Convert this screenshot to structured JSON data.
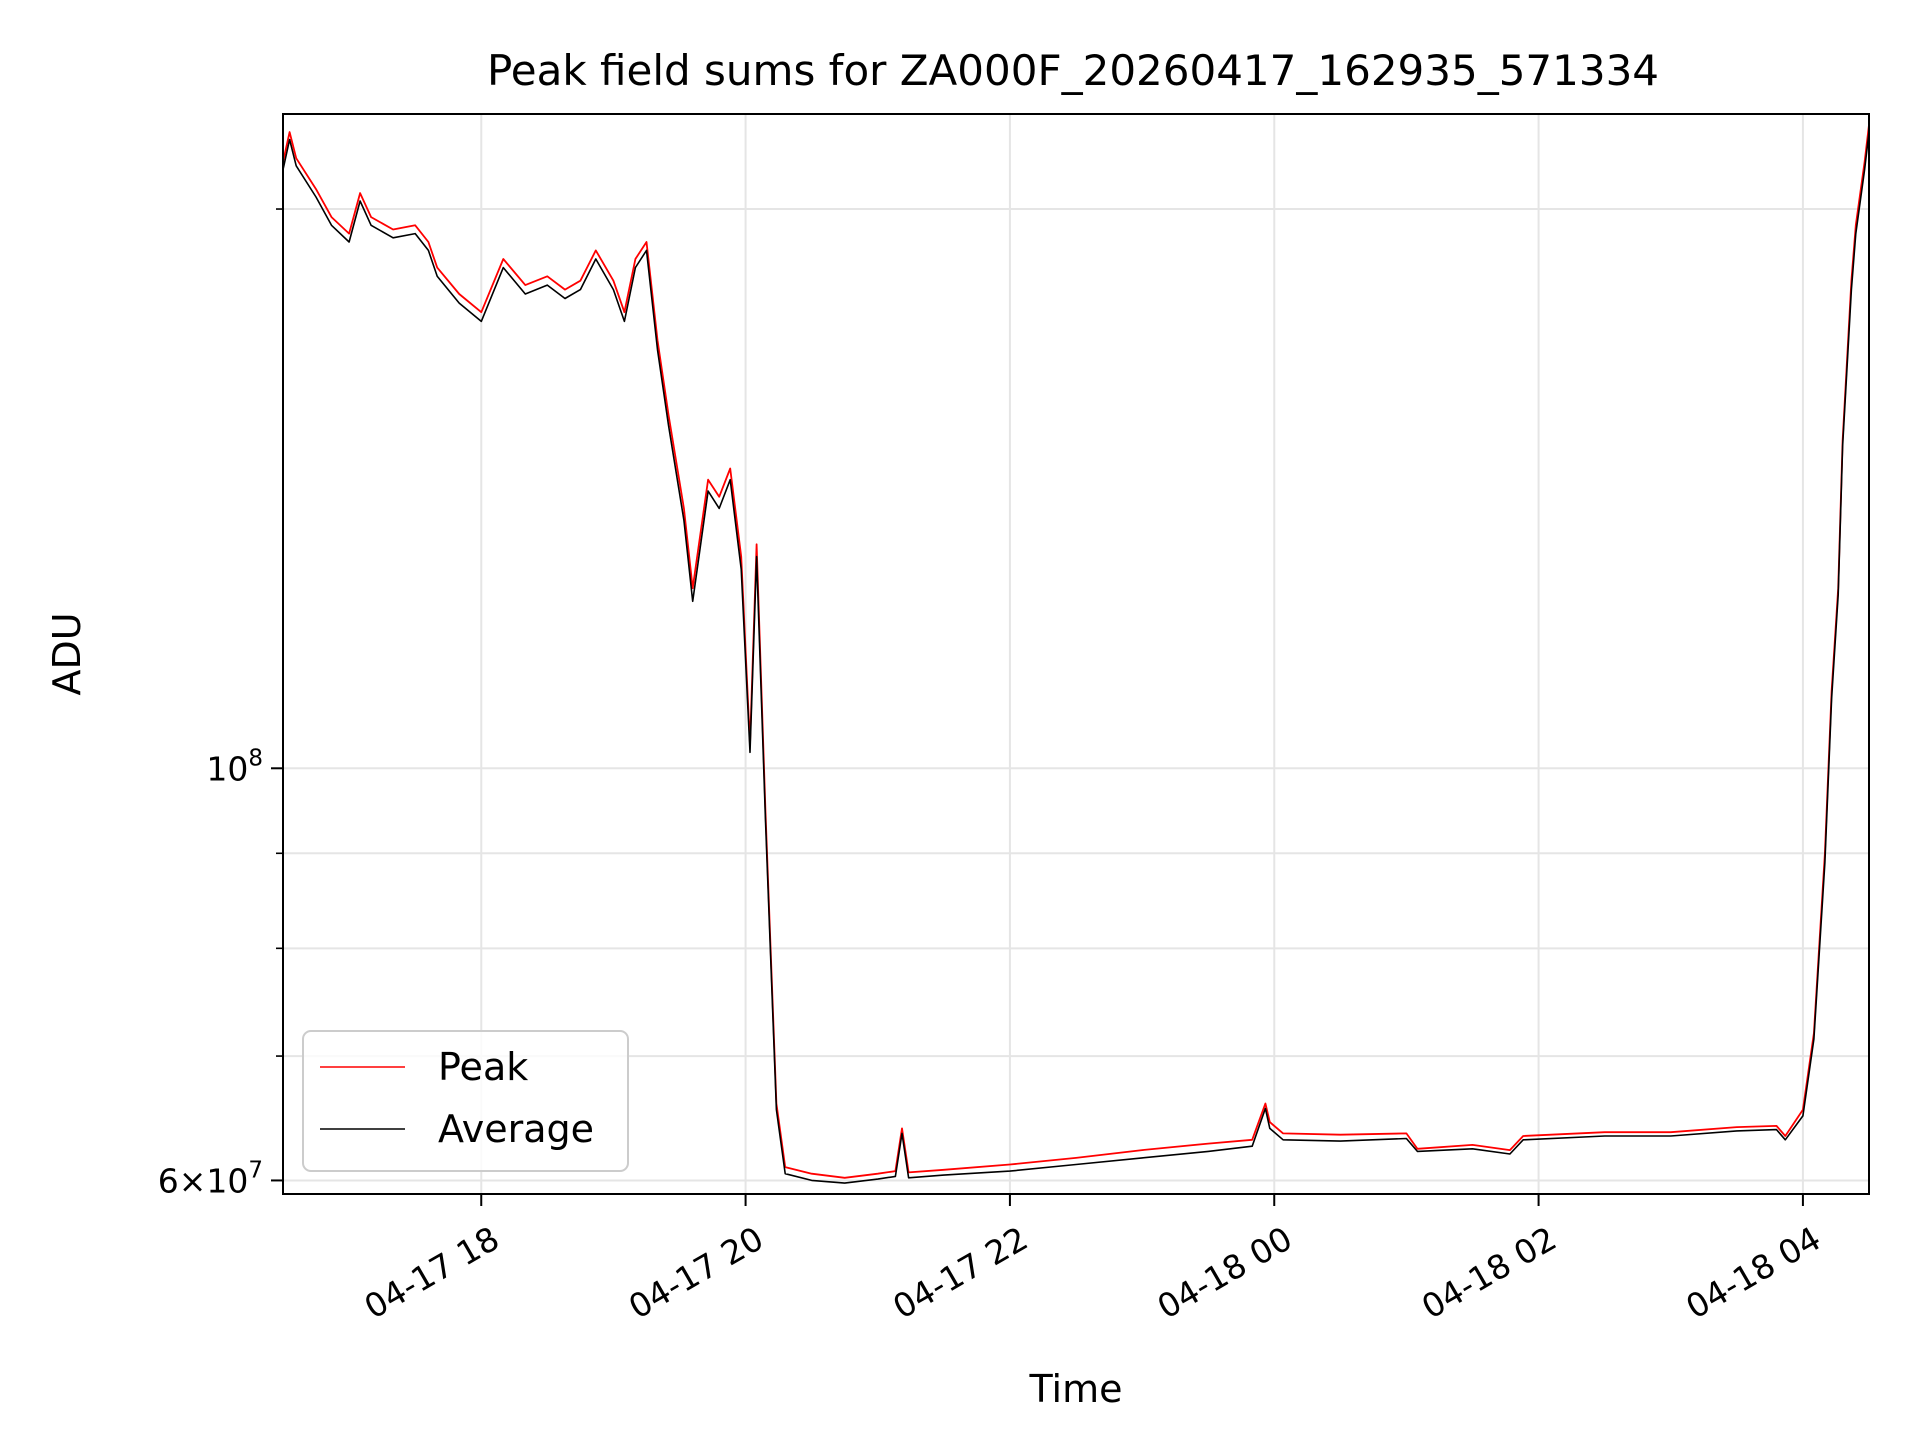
{
  "chart_data": {
    "type": "line",
    "title": "Peak field sums for ZA000F_20260417_162935_571334",
    "xlabel": "Time",
    "ylabel": "ADU",
    "y_scale": "log",
    "xlim": [
      "2026-04-17T16:30",
      "2026-04-18T04:30"
    ],
    "ylim": [
      59000000,
      225000000
    ],
    "x_ticks": [
      {
        "value": "2026-04-17T18:00",
        "label": "04-17 18"
      },
      {
        "value": "2026-04-17T20:00",
        "label": "04-17 20"
      },
      {
        "value": "2026-04-17T22:00",
        "label": "04-17 22"
      },
      {
        "value": "2026-04-18T00:00",
        "label": "04-18 00"
      },
      {
        "value": "2026-04-18T02:00",
        "label": "04-18 02"
      },
      {
        "value": "2026-04-18T04:00",
        "label": "04-18 04"
      }
    ],
    "y_major_ticks": [
      {
        "value": 60000000,
        "base": "6",
        "exp": "7",
        "mantissa": true
      },
      {
        "value": 100000000,
        "base": "10",
        "exp": "8",
        "mantissa": false
      }
    ],
    "y_minor_ticks": [
      70000000,
      80000000,
      90000000,
      200000000
    ],
    "grid": true,
    "legend_position": "lower-left",
    "series": [
      {
        "name": "Peak",
        "color": "#ff0000",
        "points": [
          [
            "2026-04-17T16:30",
            212000000
          ],
          [
            "2026-04-17T16:33",
            220000000
          ],
          [
            "2026-04-17T16:36",
            213000000
          ],
          [
            "2026-04-17T16:45",
            205000000
          ],
          [
            "2026-04-17T16:52",
            198000000
          ],
          [
            "2026-04-17T17:00",
            194000000
          ],
          [
            "2026-04-17T17:05",
            204000000
          ],
          [
            "2026-04-17T17:10",
            198000000
          ],
          [
            "2026-04-17T17:20",
            195000000
          ],
          [
            "2026-04-17T17:30",
            196000000
          ],
          [
            "2026-04-17T17:36",
            192000000
          ],
          [
            "2026-04-17T17:40",
            186000000
          ],
          [
            "2026-04-17T17:50",
            180000000
          ],
          [
            "2026-04-17T18:00",
            176000000
          ],
          [
            "2026-04-17T18:10",
            188000000
          ],
          [
            "2026-04-17T18:20",
            182000000
          ],
          [
            "2026-04-17T18:30",
            184000000
          ],
          [
            "2026-04-17T18:38",
            181000000
          ],
          [
            "2026-04-17T18:45",
            183000000
          ],
          [
            "2026-04-17T18:52",
            190000000
          ],
          [
            "2026-04-17T19:00",
            183000000
          ],
          [
            "2026-04-17T19:05",
            176000000
          ],
          [
            "2026-04-17T19:10",
            188000000
          ],
          [
            "2026-04-17T19:15",
            192000000
          ],
          [
            "2026-04-17T19:20",
            170000000
          ],
          [
            "2026-04-17T19:25",
            155000000
          ],
          [
            "2026-04-17T19:32",
            138000000
          ],
          [
            "2026-04-17T19:36",
            125000000
          ],
          [
            "2026-04-17T19:43",
            143000000
          ],
          [
            "2026-04-17T19:48",
            140000000
          ],
          [
            "2026-04-17T19:53",
            145000000
          ],
          [
            "2026-04-17T19:58",
            130000000
          ],
          [
            "2026-04-17T20:02",
            103000000
          ],
          [
            "2026-04-17T20:05",
            132000000
          ],
          [
            "2026-04-17T20:09",
            95000000
          ],
          [
            "2026-04-17T20:14",
            66000000
          ],
          [
            "2026-04-17T20:18",
            61000000
          ],
          [
            "2026-04-17T20:30",
            60500000
          ],
          [
            "2026-04-17T20:45",
            60200000
          ],
          [
            "2026-04-17T21:00",
            60500000
          ],
          [
            "2026-04-17T21:08",
            60700000
          ],
          [
            "2026-04-17T21:11",
            64000000
          ],
          [
            "2026-04-17T21:14",
            60600000
          ],
          [
            "2026-04-17T21:30",
            60800000
          ],
          [
            "2026-04-17T22:00",
            61200000
          ],
          [
            "2026-04-17T22:30",
            61700000
          ],
          [
            "2026-04-17T23:00",
            62300000
          ],
          [
            "2026-04-17T23:30",
            62800000
          ],
          [
            "2026-04-17T23:50",
            63100000
          ],
          [
            "2026-04-17T23:56",
            66000000
          ],
          [
            "2026-04-17T23:58",
            64500000
          ],
          [
            "2026-04-18T00:04",
            63600000
          ],
          [
            "2026-04-18T00:30",
            63500000
          ],
          [
            "2026-04-18T01:00",
            63600000
          ],
          [
            "2026-04-18T01:05",
            62400000
          ],
          [
            "2026-04-18T01:30",
            62700000
          ],
          [
            "2026-04-18T01:47",
            62300000
          ],
          [
            "2026-04-18T01:53",
            63400000
          ],
          [
            "2026-04-18T02:30",
            63700000
          ],
          [
            "2026-04-18T03:00",
            63700000
          ],
          [
            "2026-04-18T03:30",
            64100000
          ],
          [
            "2026-04-18T03:48",
            64200000
          ],
          [
            "2026-04-18T03:52",
            63400000
          ],
          [
            "2026-04-18T04:00",
            65500000
          ],
          [
            "2026-04-18T04:05",
            72000000
          ],
          [
            "2026-04-18T04:10",
            90000000
          ],
          [
            "2026-04-18T04:13",
            110000000
          ],
          [
            "2026-04-18T04:16",
            125000000
          ],
          [
            "2026-04-18T04:18",
            150000000
          ],
          [
            "2026-04-18T04:22",
            183000000
          ],
          [
            "2026-04-18T04:24",
            196000000
          ],
          [
            "2026-04-18T04:28",
            212000000
          ],
          [
            "2026-04-18T04:30",
            222000000
          ]
        ]
      },
      {
        "name": "Average",
        "color": "#000000",
        "points": [
          [
            "2026-04-17T16:30",
            210000000
          ],
          [
            "2026-04-17T16:33",
            218000000
          ],
          [
            "2026-04-17T16:36",
            211000000
          ],
          [
            "2026-04-17T16:45",
            203000000
          ],
          [
            "2026-04-17T16:52",
            196000000
          ],
          [
            "2026-04-17T17:00",
            192000000
          ],
          [
            "2026-04-17T17:05",
            202000000
          ],
          [
            "2026-04-17T17:10",
            196000000
          ],
          [
            "2026-04-17T17:20",
            193000000
          ],
          [
            "2026-04-17T17:30",
            194000000
          ],
          [
            "2026-04-17T17:36",
            190000000
          ],
          [
            "2026-04-17T17:40",
            184000000
          ],
          [
            "2026-04-17T17:50",
            178000000
          ],
          [
            "2026-04-17T18:00",
            174000000
          ],
          [
            "2026-04-17T18:10",
            186000000
          ],
          [
            "2026-04-17T18:20",
            180000000
          ],
          [
            "2026-04-17T18:30",
            182000000
          ],
          [
            "2026-04-17T18:38",
            179000000
          ],
          [
            "2026-04-17T18:45",
            181000000
          ],
          [
            "2026-04-17T18:52",
            188000000
          ],
          [
            "2026-04-17T19:00",
            181000000
          ],
          [
            "2026-04-17T19:05",
            174000000
          ],
          [
            "2026-04-17T19:10",
            186000000
          ],
          [
            "2026-04-17T19:15",
            190000000
          ],
          [
            "2026-04-17T19:20",
            168000000
          ],
          [
            "2026-04-17T19:25",
            153000000
          ],
          [
            "2026-04-17T19:32",
            136000000
          ],
          [
            "2026-04-17T19:36",
            123000000
          ],
          [
            "2026-04-17T19:43",
            141000000
          ],
          [
            "2026-04-17T19:48",
            138000000
          ],
          [
            "2026-04-17T19:53",
            143000000
          ],
          [
            "2026-04-17T19:58",
            128000000
          ],
          [
            "2026-04-17T20:02",
            102000000
          ],
          [
            "2026-04-17T20:05",
            130000000
          ],
          [
            "2026-04-17T20:09",
            94000000
          ],
          [
            "2026-04-17T20:14",
            65500000
          ],
          [
            "2026-04-17T20:18",
            60500000
          ],
          [
            "2026-04-17T20:30",
            60000000
          ],
          [
            "2026-04-17T20:45",
            59800000
          ],
          [
            "2026-04-17T21:00",
            60100000
          ],
          [
            "2026-04-17T21:08",
            60300000
          ],
          [
            "2026-04-17T21:11",
            63600000
          ],
          [
            "2026-04-17T21:14",
            60200000
          ],
          [
            "2026-04-17T21:30",
            60400000
          ],
          [
            "2026-04-17T22:00",
            60700000
          ],
          [
            "2026-04-17T22:30",
            61200000
          ],
          [
            "2026-04-17T23:00",
            61700000
          ],
          [
            "2026-04-17T23:30",
            62200000
          ],
          [
            "2026-04-17T23:50",
            62600000
          ],
          [
            "2026-04-17T23:56",
            65600000
          ],
          [
            "2026-04-17T23:58",
            64000000
          ],
          [
            "2026-04-18T00:04",
            63100000
          ],
          [
            "2026-04-18T00:30",
            63000000
          ],
          [
            "2026-04-18T01:00",
            63200000
          ],
          [
            "2026-04-18T01:05",
            62200000
          ],
          [
            "2026-04-18T01:30",
            62400000
          ],
          [
            "2026-04-18T01:47",
            62000000
          ],
          [
            "2026-04-18T01:53",
            63100000
          ],
          [
            "2026-04-18T02:30",
            63400000
          ],
          [
            "2026-04-18T03:00",
            63400000
          ],
          [
            "2026-04-18T03:30",
            63800000
          ],
          [
            "2026-04-18T03:48",
            63900000
          ],
          [
            "2026-04-18T03:52",
            63100000
          ],
          [
            "2026-04-18T04:00",
            65000000
          ],
          [
            "2026-04-18T04:05",
            71500000
          ],
          [
            "2026-04-18T04:10",
            89000000
          ],
          [
            "2026-04-18T04:13",
            109000000
          ],
          [
            "2026-04-18T04:16",
            124000000
          ],
          [
            "2026-04-18T04:18",
            149000000
          ],
          [
            "2026-04-18T04:22",
            181000000
          ],
          [
            "2026-04-18T04:24",
            194000000
          ],
          [
            "2026-04-18T04:28",
            210000000
          ],
          [
            "2026-04-18T04:30",
            220000000
          ]
        ]
      }
    ]
  }
}
